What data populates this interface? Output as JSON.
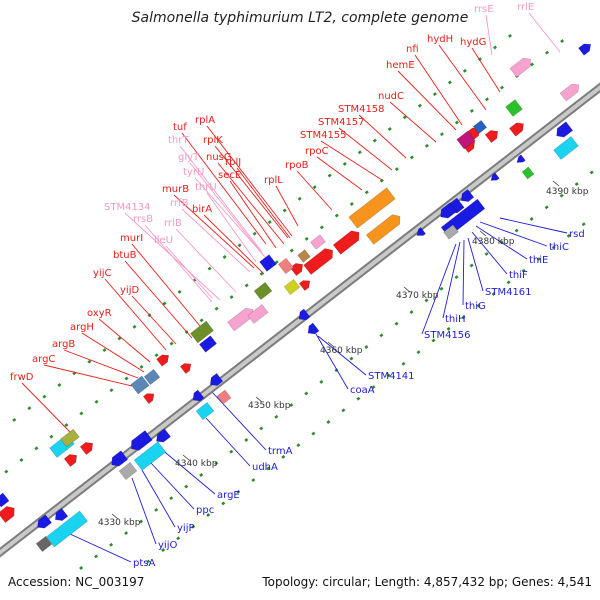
{
  "title": "Salmonella typhimurium LT2, complete genome",
  "accession": "Accession: NC_003197",
  "topology": "Topology: circular; Length: 4,857,432 bp; Genes: 4,541",
  "colors": {
    "red_label": "#e8201c",
    "pink_label": "#f39ac5",
    "blue_label": "#1d1dd6",
    "backbone": "#9a9a9a",
    "gene_red": "#ee1c1c",
    "gene_blue": "#1a1ae0",
    "gene_cyan": "#19d3f0",
    "gene_orange": "#f7941d",
    "gene_pink": "#f7a3cf",
    "gene_green": "#2bbf2b",
    "gene_olive": "#6d8f2a",
    "gene_steel": "#5a86b8"
  },
  "ticks": [
    {
      "id": "t4330",
      "label": "4330 kbp"
    },
    {
      "id": "t4340",
      "label": "4340 kbp"
    },
    {
      "id": "t4350",
      "label": "4350 kbp"
    },
    {
      "id": "t4360",
      "label": "4360 kbp"
    },
    {
      "id": "t4370",
      "label": "4370 kbp"
    },
    {
      "id": "t4380",
      "label": "4380 kbp"
    },
    {
      "id": "t4390",
      "label": "4390 kbp"
    }
  ],
  "top_genes": [
    {
      "id": "rrsE",
      "label": "rrsE",
      "kind": "rRNA"
    },
    {
      "id": "rrlE",
      "label": "rrlE",
      "kind": "rRNA"
    },
    {
      "id": "hydH",
      "label": "hydH",
      "kind": "protein"
    },
    {
      "id": "hydG",
      "label": "hydG",
      "kind": "protein"
    },
    {
      "id": "nfi",
      "label": "nfi",
      "kind": "protein"
    },
    {
      "id": "hemE",
      "label": "hemE",
      "kind": "protein"
    },
    {
      "id": "nudC",
      "label": "nudC",
      "kind": "protein"
    },
    {
      "id": "STM4158",
      "label": "STM4158",
      "kind": "protein"
    },
    {
      "id": "STM4157",
      "label": "STM4157",
      "kind": "protein"
    },
    {
      "id": "STM4155",
      "label": "STM4155",
      "kind": "protein"
    },
    {
      "id": "rpoC",
      "label": "rpoC",
      "kind": "protein"
    },
    {
      "id": "rpoB",
      "label": "rpoB",
      "kind": "protein"
    },
    {
      "id": "rplA",
      "label": "rplA",
      "kind": "protein"
    },
    {
      "id": "tuf",
      "label": "tuf",
      "kind": "protein"
    },
    {
      "id": "rplK",
      "label": "rplK",
      "kind": "protein"
    },
    {
      "id": "thrT",
      "label": "thrT",
      "kind": "tRNA"
    },
    {
      "id": "nusG",
      "label": "nusG",
      "kind": "protein"
    },
    {
      "id": "rplJ",
      "label": "rplJ",
      "kind": "protein"
    },
    {
      "id": "glyT",
      "label": "glyT",
      "kind": "tRNA"
    },
    {
      "id": "tyrU",
      "label": "tyrU",
      "kind": "tRNA"
    },
    {
      "id": "secE",
      "label": "secE",
      "kind": "protein"
    },
    {
      "id": "rplL",
      "label": "rplL",
      "kind": "protein"
    },
    {
      "id": "thrU",
      "label": "thrU",
      "kind": "tRNA"
    },
    {
      "id": "murB",
      "label": "murB",
      "kind": "protein"
    },
    {
      "id": "rrfB",
      "label": "rrfB",
      "kind": "rRNA"
    },
    {
      "id": "birA",
      "label": "birA",
      "kind": "protein"
    },
    {
      "id": "STM4134",
      "label": "STM4134",
      "kind": "rRNA"
    },
    {
      "id": "rrsB",
      "label": "rrsB",
      "kind": "rRNA"
    },
    {
      "id": "rrlB",
      "label": "rrlB",
      "kind": "rRNA"
    },
    {
      "id": "murI",
      "label": "murI",
      "kind": "protein"
    },
    {
      "id": "ileU",
      "label": "ileU",
      "kind": "tRNA"
    },
    {
      "id": "btuB",
      "label": "btuB",
      "kind": "protein"
    },
    {
      "id": "yijC",
      "label": "yijC",
      "kind": "protein"
    },
    {
      "id": "yijD",
      "label": "yijD",
      "kind": "protein"
    },
    {
      "id": "oxyR",
      "label": "oxyR",
      "kind": "protein"
    },
    {
      "id": "argH",
      "label": "argH",
      "kind": "protein"
    },
    {
      "id": "argB",
      "label": "argB",
      "kind": "protein"
    },
    {
      "id": "argC",
      "label": "argC",
      "kind": "protein"
    },
    {
      "id": "frwD",
      "label": "frwD",
      "kind": "protein"
    }
  ],
  "bottom_genes": [
    {
      "id": "rsd",
      "label": "rsd"
    },
    {
      "id": "thiC",
      "label": "thiC"
    },
    {
      "id": "thiE",
      "label": "thiE"
    },
    {
      "id": "thiF",
      "label": "thiF"
    },
    {
      "id": "STM4161",
      "label": "STM4161"
    },
    {
      "id": "thiG",
      "label": "thiG"
    },
    {
      "id": "thiH",
      "label": "thiH"
    },
    {
      "id": "STM4156",
      "label": "STM4156"
    },
    {
      "id": "STM4141",
      "label": "STM4141"
    },
    {
      "id": "coaA",
      "label": "coaA"
    },
    {
      "id": "trmA",
      "label": "trmA"
    },
    {
      "id": "udhA",
      "label": "udhA"
    },
    {
      "id": "argE",
      "label": "argE"
    },
    {
      "id": "ppc",
      "label": "ppc"
    },
    {
      "id": "yijP",
      "label": "yijP"
    },
    {
      "id": "yijO",
      "label": "yijO"
    },
    {
      "id": "ptsA",
      "label": "ptsA"
    }
  ]
}
